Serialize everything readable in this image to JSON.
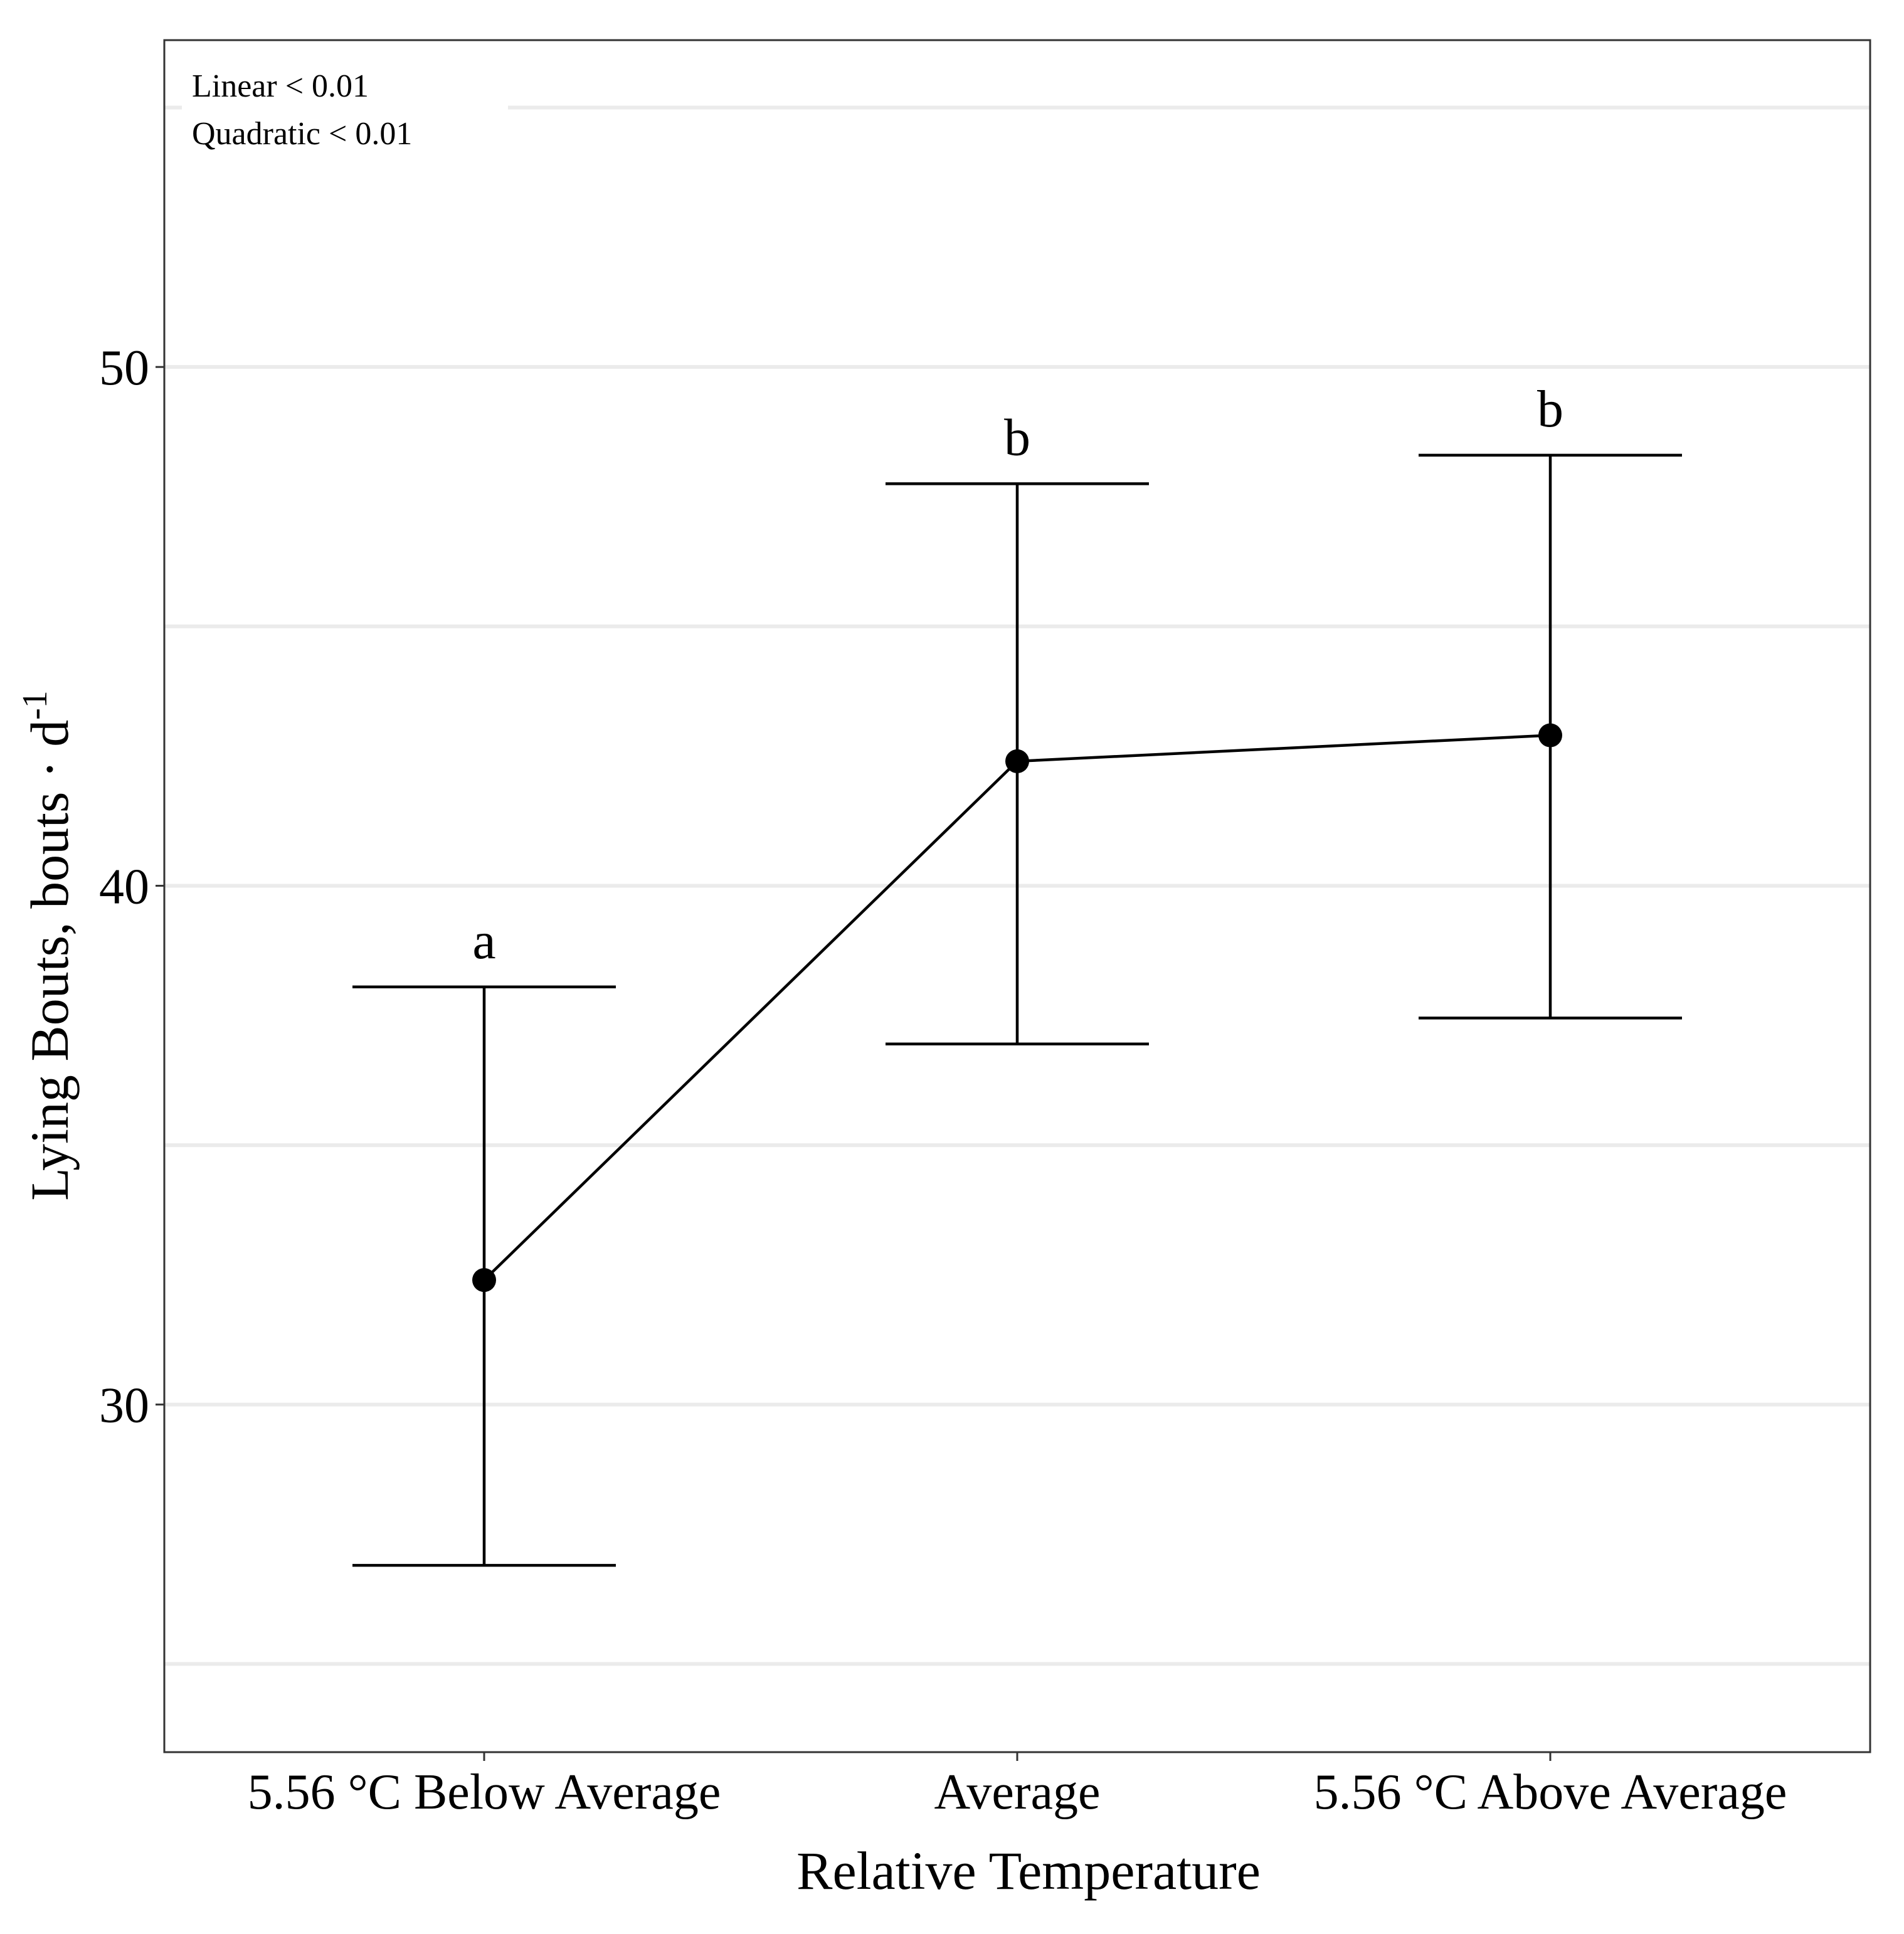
{
  "chart_data": {
    "type": "line",
    "title": "",
    "xlabel": "Relative Temperature",
    "ylabel_main": "Lying Bouts, bouts · d",
    "ylabel_superscript": "-1",
    "categories": [
      "5.56 °C Below Average",
      "Average",
      "5.56 °C Above Average"
    ],
    "series": [
      {
        "name": "Lying Bouts",
        "values": [
          32.4,
          42.4,
          42.9
        ],
        "error_lower": [
          26.9,
          36.95,
          37.45
        ],
        "error_upper": [
          38.05,
          47.75,
          48.3
        ],
        "letters": [
          "a",
          "b",
          "b"
        ]
      }
    ],
    "ylim": [
      23.3,
      56.3
    ],
    "yticks": [
      30,
      40,
      50
    ],
    "gridlines": [
      25,
      30,
      35,
      40,
      45,
      50,
      55
    ],
    "annotation_lines": [
      "Linear < 0.01",
      "Quadratic < 0.01"
    ],
    "grid": true,
    "legend": "none",
    "colors": {
      "line": "#000000",
      "grid": "#ebebeb",
      "border": "#333333"
    }
  }
}
